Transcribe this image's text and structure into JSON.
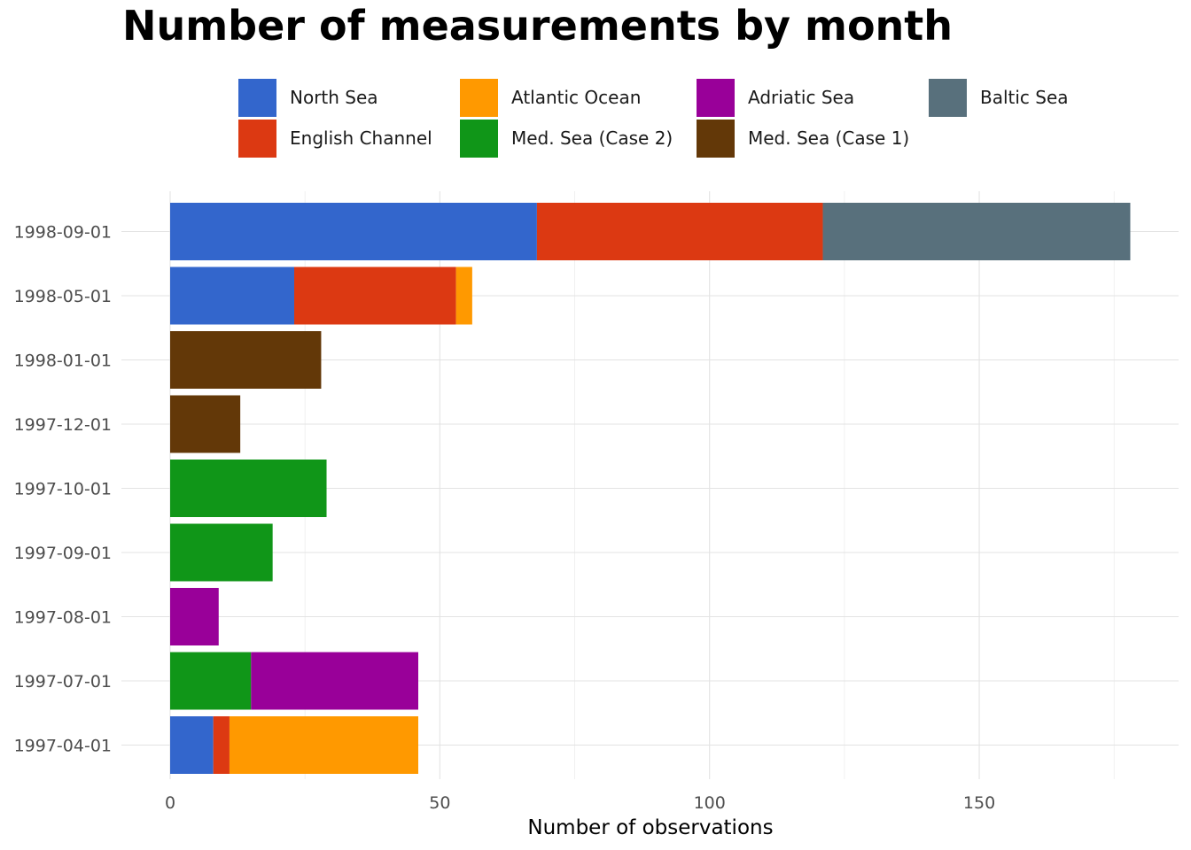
{
  "chart_data": {
    "type": "bar",
    "orientation": "horizontal",
    "stacked": true,
    "title": "Number of measurements by month",
    "xlabel": "Number of observations",
    "ylabel": "",
    "xlim": [
      0,
      187
    ],
    "x_ticks": [
      0,
      50,
      100,
      150
    ],
    "grid": true,
    "legend_position": "top",
    "categories": [
      "1998-09-01",
      "1998-05-01",
      "1998-01-01",
      "1997-12-01",
      "1997-10-01",
      "1997-09-01",
      "1997-08-01",
      "1997-07-01",
      "1997-04-01"
    ],
    "series": [
      {
        "name": "North Sea",
        "color": "#3366CC",
        "values": [
          68,
          23,
          0,
          0,
          0,
          0,
          0,
          0,
          8
        ]
      },
      {
        "name": "English Channel",
        "color": "#DC3912",
        "values": [
          53,
          30,
          0,
          0,
          0,
          0,
          0,
          0,
          3
        ]
      },
      {
        "name": "Atlantic Ocean",
        "color": "#FF9900",
        "values": [
          0,
          3,
          0,
          0,
          0,
          0,
          0,
          0,
          35
        ]
      },
      {
        "name": "Med. Sea (Case 2)",
        "color": "#109618",
        "values": [
          0,
          0,
          0,
          0,
          29,
          19,
          0,
          15,
          0
        ]
      },
      {
        "name": "Adriatic Sea",
        "color": "#990099",
        "values": [
          0,
          0,
          0,
          0,
          0,
          0,
          9,
          31,
          0
        ]
      },
      {
        "name": "Med. Sea (Case 1)",
        "color": "#633808",
        "values": [
          0,
          0,
          28,
          13,
          0,
          0,
          0,
          0,
          0
        ]
      },
      {
        "name": "Baltic Sea",
        "color": "#58707C",
        "values": [
          57,
          0,
          0,
          0,
          0,
          0,
          0,
          0,
          0
        ]
      }
    ],
    "stack_order": [
      "Med. Sea (Case 2)",
      "North Sea",
      "English Channel",
      "Adriatic Sea",
      "Atlantic Ocean",
      "Med. Sea (Case 1)",
      "Baltic Sea"
    ],
    "legend_order": [
      "North Sea",
      "Atlantic Ocean",
      "Adriatic Sea",
      "Baltic Sea",
      "English Channel",
      "Med. Sea (Case 2)",
      "Med. Sea (Case 1)"
    ]
  }
}
